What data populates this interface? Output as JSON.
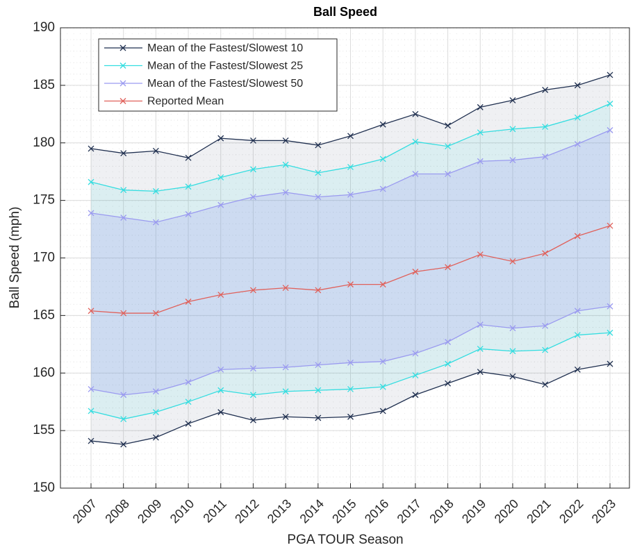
{
  "chart_data": {
    "type": "band-line",
    "title": "Ball Speed",
    "xlabel": "PGA TOUR Season",
    "ylabel": "Ball Speed (mph)",
    "categories": [
      "2007",
      "2008",
      "2009",
      "2010",
      "2011",
      "2012",
      "2013",
      "2014",
      "2015",
      "2016",
      "2017",
      "2018",
      "2019",
      "2020",
      "2021",
      "2022",
      "2023"
    ],
    "ylim": [
      150,
      190
    ],
    "yticks": [
      150,
      155,
      160,
      165,
      170,
      175,
      180,
      185,
      190
    ],
    "grid": true,
    "legend": "top-left",
    "series": [
      {
        "name": "Mean of the Fastest/Slowest 10",
        "color": "#1f2f4f",
        "upper": [
          179.5,
          179.1,
          179.3,
          178.7,
          180.4,
          180.2,
          180.2,
          179.8,
          180.6,
          181.6,
          182.5,
          181.5,
          183.1,
          183.7,
          184.6,
          185.0,
          185.9
        ],
        "lower": [
          154.1,
          153.8,
          154.4,
          155.6,
          156.6,
          155.9,
          156.2,
          156.1,
          156.2,
          156.7,
          158.1,
          159.1,
          160.1,
          159.7,
          159.0,
          160.3,
          160.8
        ]
      },
      {
        "name": "Mean of the Fastest/Slowest 25",
        "color": "#33dde0",
        "upper": [
          176.6,
          175.9,
          175.8,
          176.2,
          177.0,
          177.7,
          178.1,
          177.4,
          177.9,
          178.6,
          180.1,
          179.7,
          180.9,
          181.2,
          181.4,
          182.2,
          183.4
        ],
        "lower": [
          156.7,
          156.0,
          156.6,
          157.5,
          158.5,
          158.1,
          158.4,
          158.5,
          158.6,
          158.8,
          159.8,
          160.8,
          162.1,
          161.9,
          162.0,
          163.3,
          163.5
        ]
      },
      {
        "name": "Mean of the Fastest/Slowest 50",
        "color": "#9a9af0",
        "upper": [
          173.9,
          173.5,
          173.1,
          173.8,
          174.6,
          175.3,
          175.7,
          175.3,
          175.5,
          176.0,
          177.3,
          177.3,
          178.4,
          178.5,
          178.8,
          179.9,
          181.1
        ],
        "lower": [
          158.6,
          158.1,
          158.4,
          159.2,
          160.3,
          160.4,
          160.5,
          160.7,
          160.9,
          161.0,
          161.7,
          162.7,
          164.2,
          163.9,
          164.1,
          165.4,
          165.8
        ]
      },
      {
        "name": "Reported Mean",
        "color": "#e0605a",
        "values": [
          165.4,
          165.2,
          165.2,
          166.2,
          166.8,
          167.2,
          167.4,
          167.2,
          167.7,
          167.7,
          168.8,
          169.2,
          170.3,
          169.7,
          170.4,
          171.9,
          172.8
        ]
      }
    ]
  }
}
